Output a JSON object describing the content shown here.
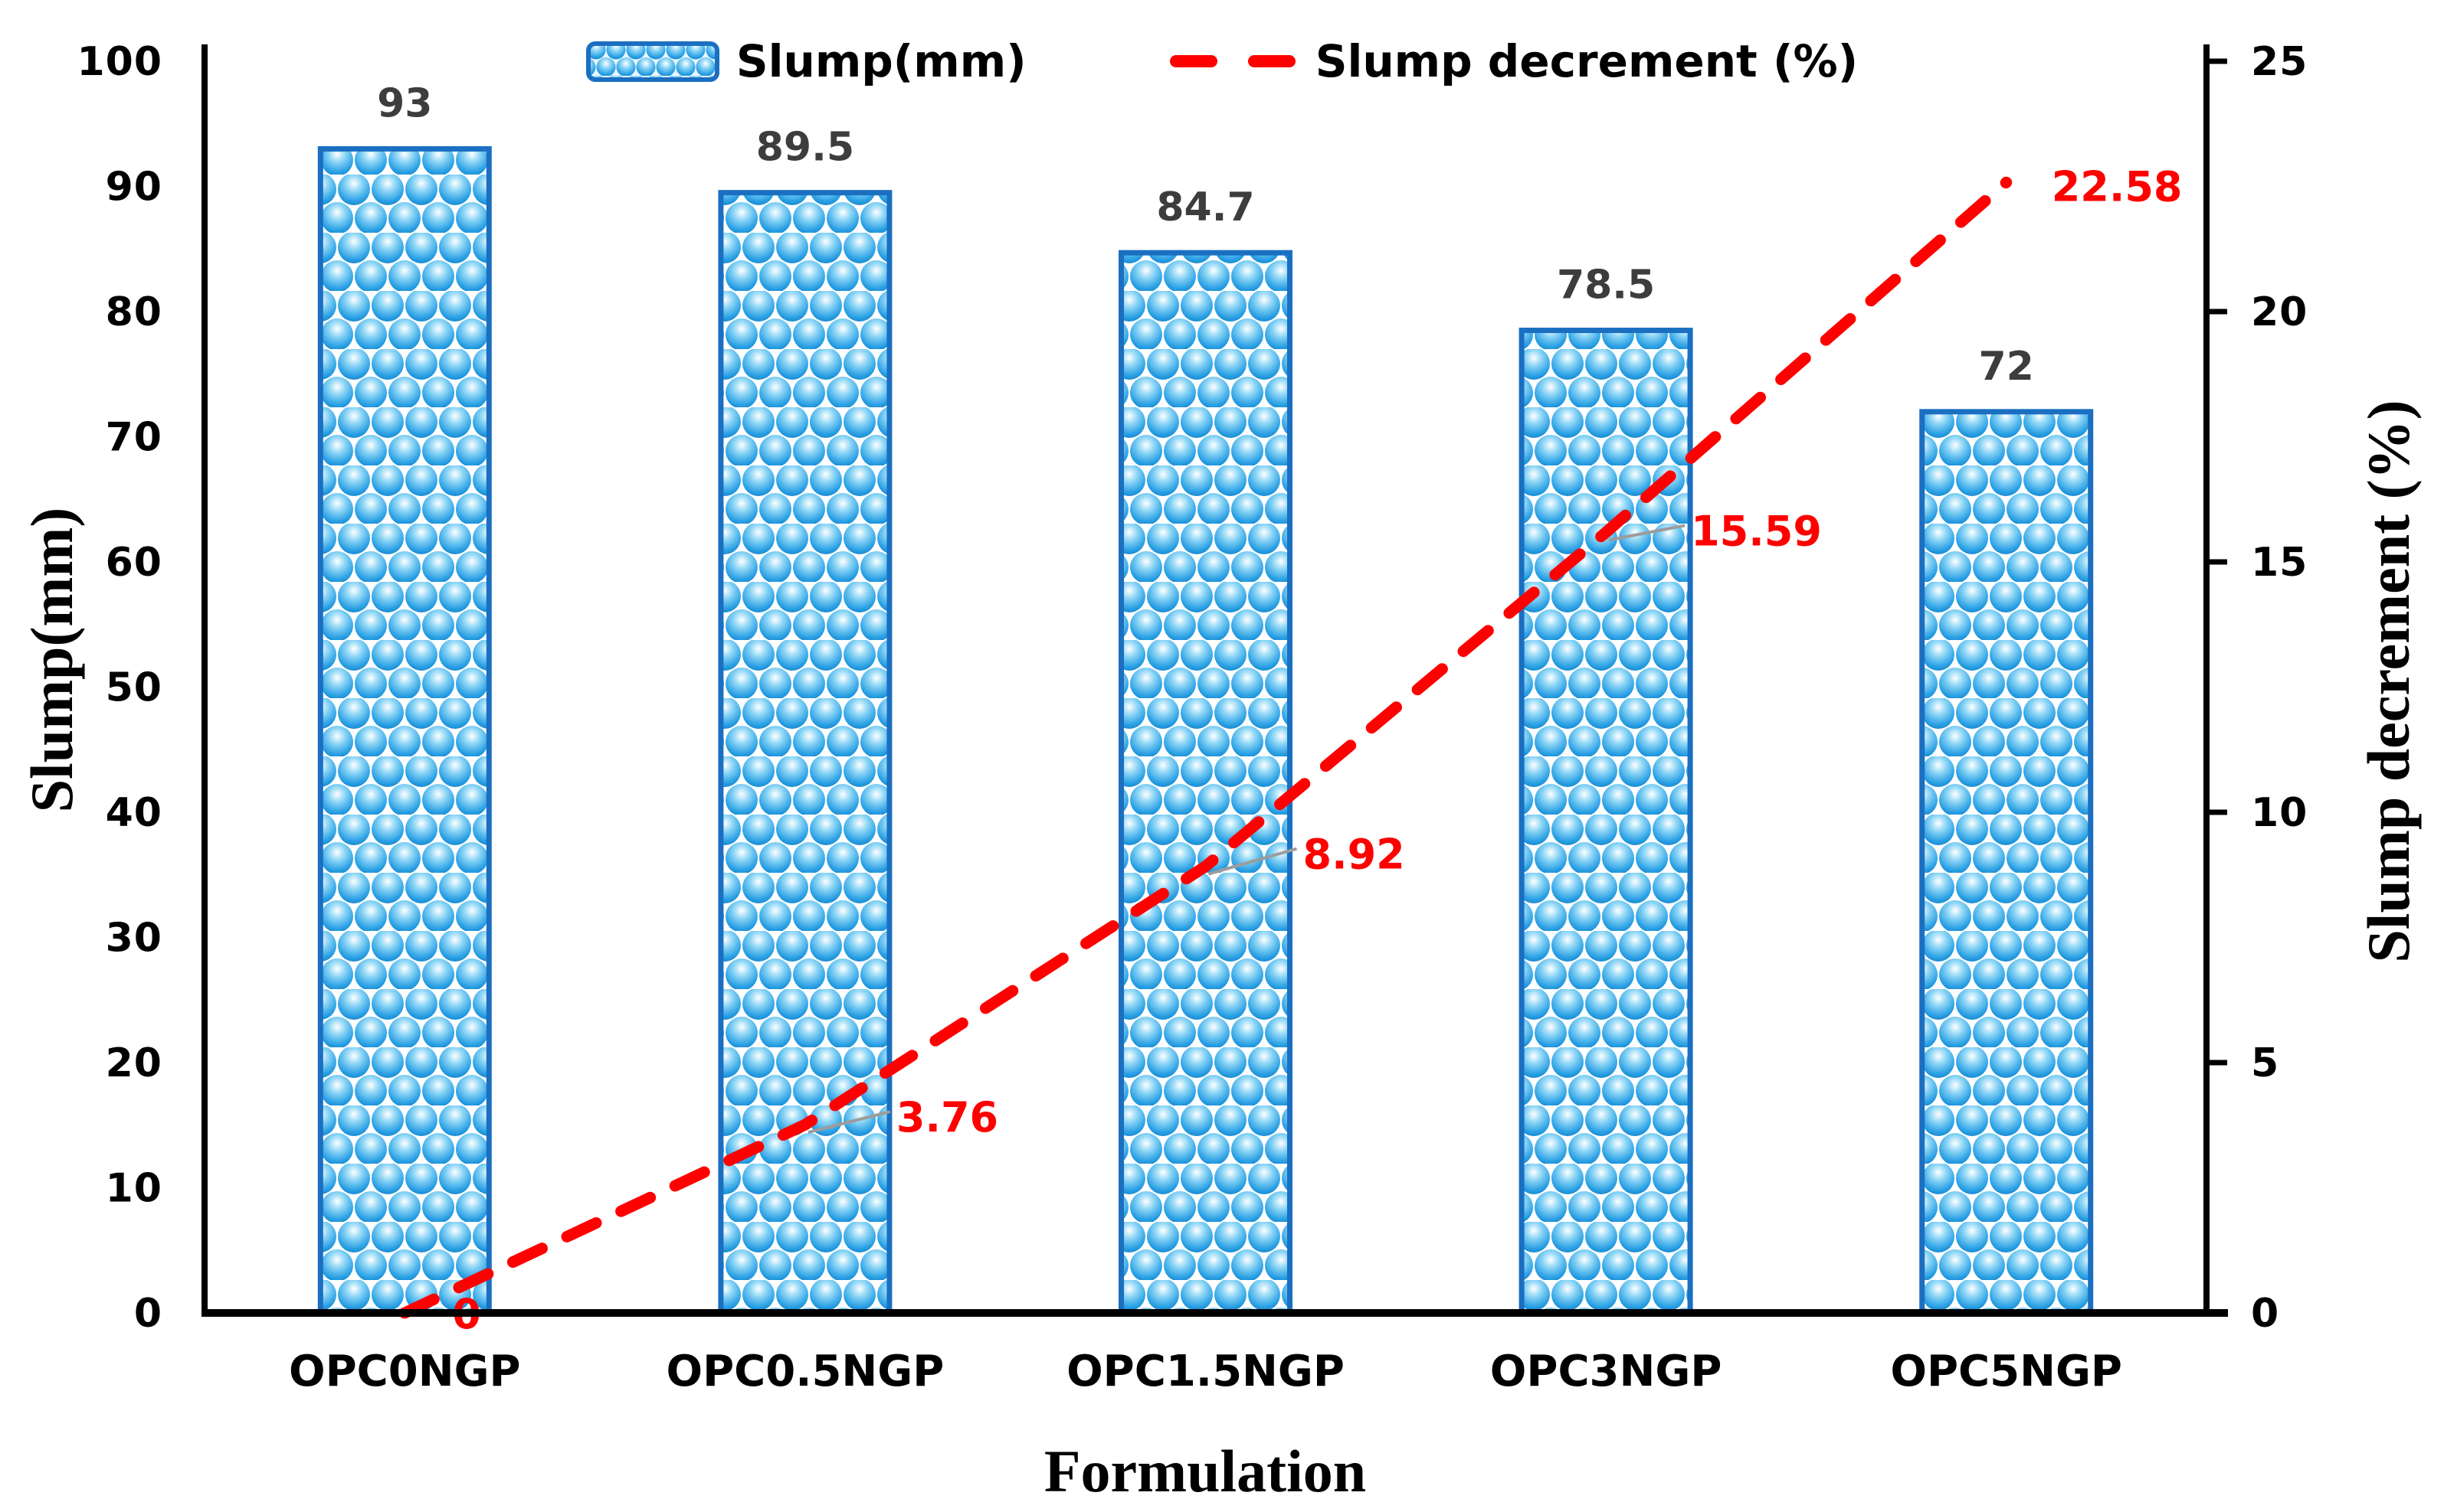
{
  "chart_data": {
    "type": "bar",
    "subtype": "bar-and-line-combo",
    "categories": [
      "OPC0NGP",
      "OPC0.5NGP",
      "OPC1.5NGP",
      "OPC3NGP",
      "OPC5NGP"
    ],
    "series": [
      {
        "name": "Slump(mm)",
        "type": "bar",
        "axis": "left",
        "values": [
          93,
          89.5,
          84.7,
          78.5,
          72
        ],
        "data_labels": [
          "93",
          "89.5",
          "84.7",
          "78.5",
          "72"
        ]
      },
      {
        "name": "Slump decrement (%)",
        "type": "line",
        "axis": "right",
        "values": [
          0,
          3.76,
          8.92,
          15.59,
          22.58
        ],
        "data_labels": [
          "0",
          "3.76",
          "8.92",
          "15.59",
          "22.58"
        ]
      }
    ],
    "left_axis": {
      "title": "Slump(mm)",
      "min": 0,
      "max": 100,
      "step": 10,
      "tick_labels": [
        "0",
        "10",
        "20",
        "30",
        "40",
        "50",
        "60",
        "70",
        "80",
        "90",
        "100"
      ]
    },
    "right_axis": {
      "title": "Slump decrement (%)",
      "min": 0,
      "max": 25,
      "step": 5,
      "tick_labels": [
        "0",
        "5",
        "10",
        "15",
        "20",
        "25"
      ]
    },
    "x_axis": {
      "title": "Formulation"
    },
    "legend": [
      {
        "label": "Slump(mm)",
        "swatch": "sphere-pattern-bar"
      },
      {
        "label": "Slump decrement (%)",
        "swatch": "red-dashed-line"
      }
    ],
    "layout_hints": {
      "grid": "off",
      "legend_position": "top-center"
    },
    "colors": {
      "bar_sphere": "#2aa0e4",
      "bar_border": "#1b6fc1",
      "line": "#fe0000",
      "bar_data_label": "#3d3d3d",
      "line_data_label": "#fe0000",
      "leader_line": "#9c9c9c",
      "axis": "#000000"
    }
  }
}
